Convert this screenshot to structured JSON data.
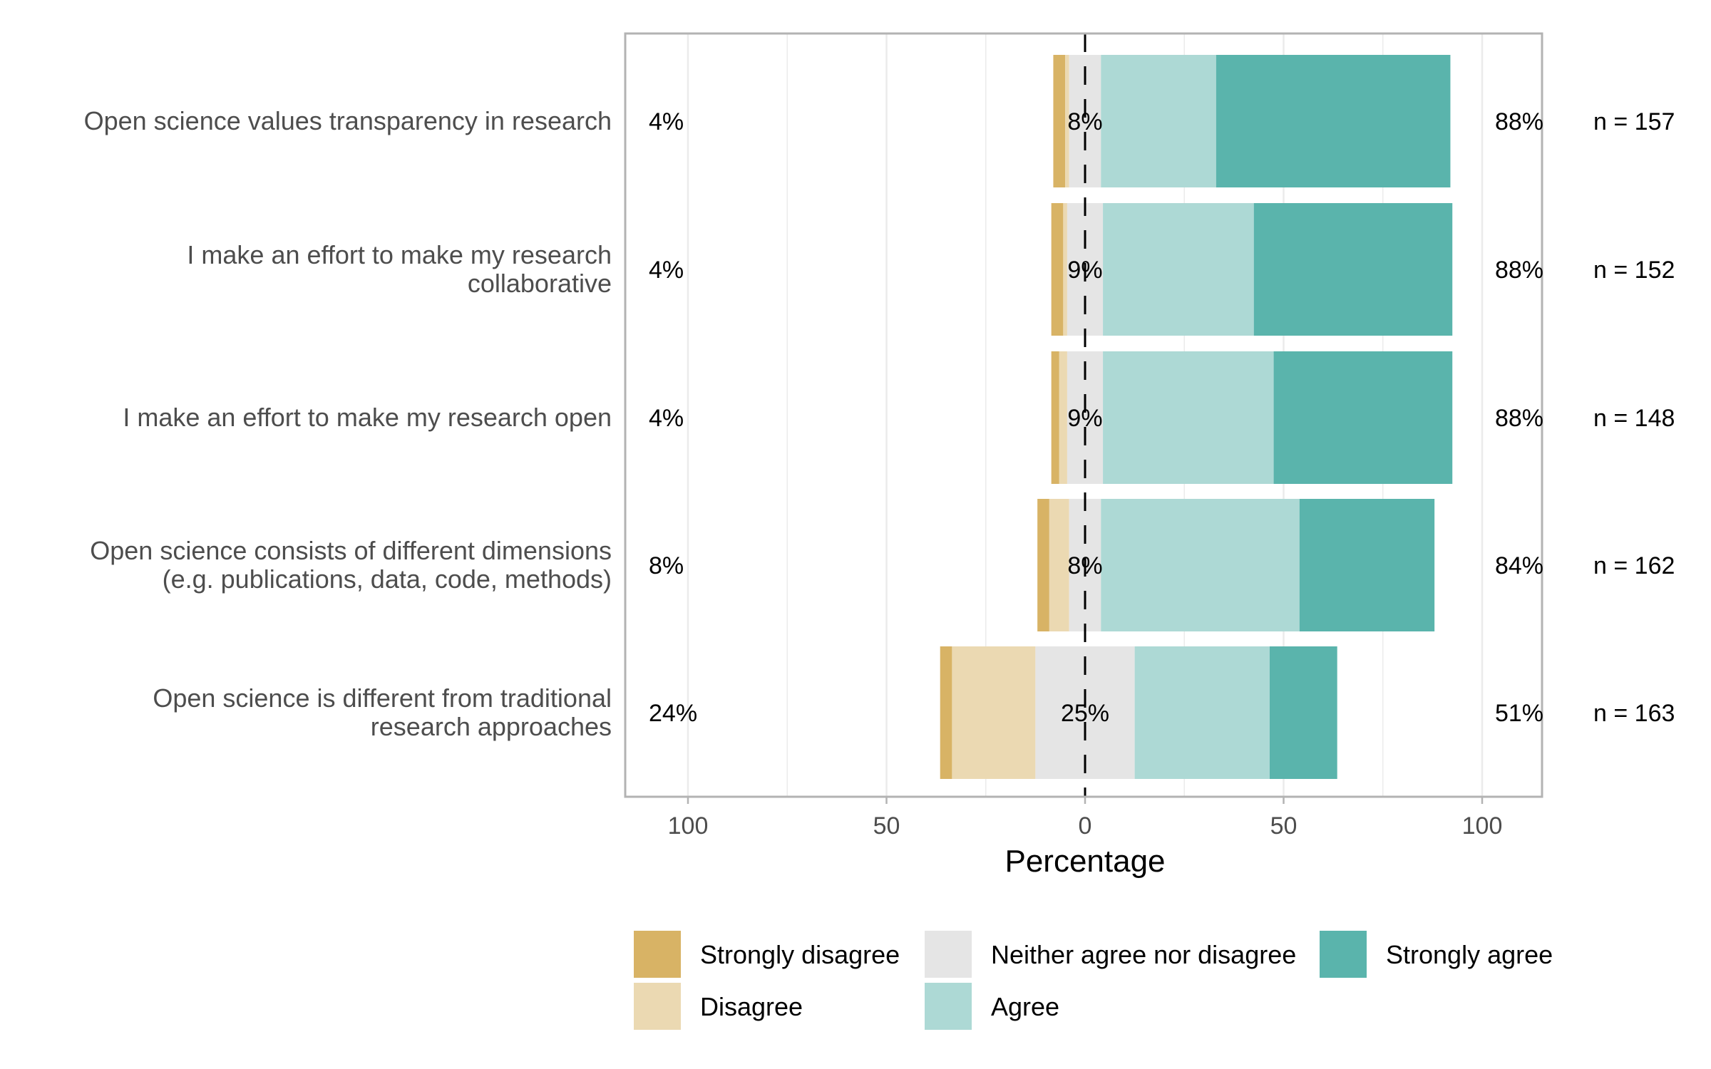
{
  "chart_data": {
    "type": "bar",
    "subtype": "diverging-stacked-likert",
    "xlabel": "Percentage",
    "xlim": [
      -100,
      100
    ],
    "x_tick_labels": [
      "100",
      "50",
      "0",
      "50",
      "100"
    ],
    "x_tick_values": [
      -100,
      -50,
      0,
      50,
      100
    ],
    "grid": true,
    "legend_position": "bottom",
    "levels": [
      {
        "name": "Strongly disagree",
        "color": "#D8B365"
      },
      {
        "name": "Disagree",
        "color": "#EBD9B2"
      },
      {
        "name": "Neither agree nor disagree",
        "color": "#E5E5E5"
      },
      {
        "name": "Agree",
        "color": "#ADD9D5"
      },
      {
        "name": "Strongly agree",
        "color": "#5AB4AC"
      }
    ],
    "items": [
      {
        "label_lines": [
          "Open science values transparency in research"
        ],
        "values": [
          3,
          1,
          8,
          29,
          59
        ],
        "low": "4%",
        "neutral": "8%",
        "high": "88%",
        "n": "n = 157"
      },
      {
        "label_lines": [
          "I make an effort to make my research",
          "collaborative"
        ],
        "values": [
          3,
          1,
          9,
          38,
          50
        ],
        "low": "4%",
        "neutral": "9%",
        "high": "88%",
        "n": "n = 152"
      },
      {
        "label_lines": [
          "I make an effort to make my research open"
        ],
        "values": [
          2,
          2,
          9,
          43,
          45
        ],
        "low": "4%",
        "neutral": "9%",
        "high": "88%",
        "n": "n = 148"
      },
      {
        "label_lines": [
          "Open science consists of different dimensions",
          "(e.g. publications, data, code, methods)"
        ],
        "values": [
          3,
          5,
          8,
          50,
          34
        ],
        "low": "8%",
        "neutral": "8%",
        "high": "84%",
        "n": "n = 162"
      },
      {
        "label_lines": [
          "Open science is different from traditional",
          "research approaches"
        ],
        "values": [
          3,
          21,
          25,
          34,
          17
        ],
        "low": "24%",
        "neutral": "25%",
        "high": "51%",
        "n": "n = 163"
      }
    ]
  }
}
